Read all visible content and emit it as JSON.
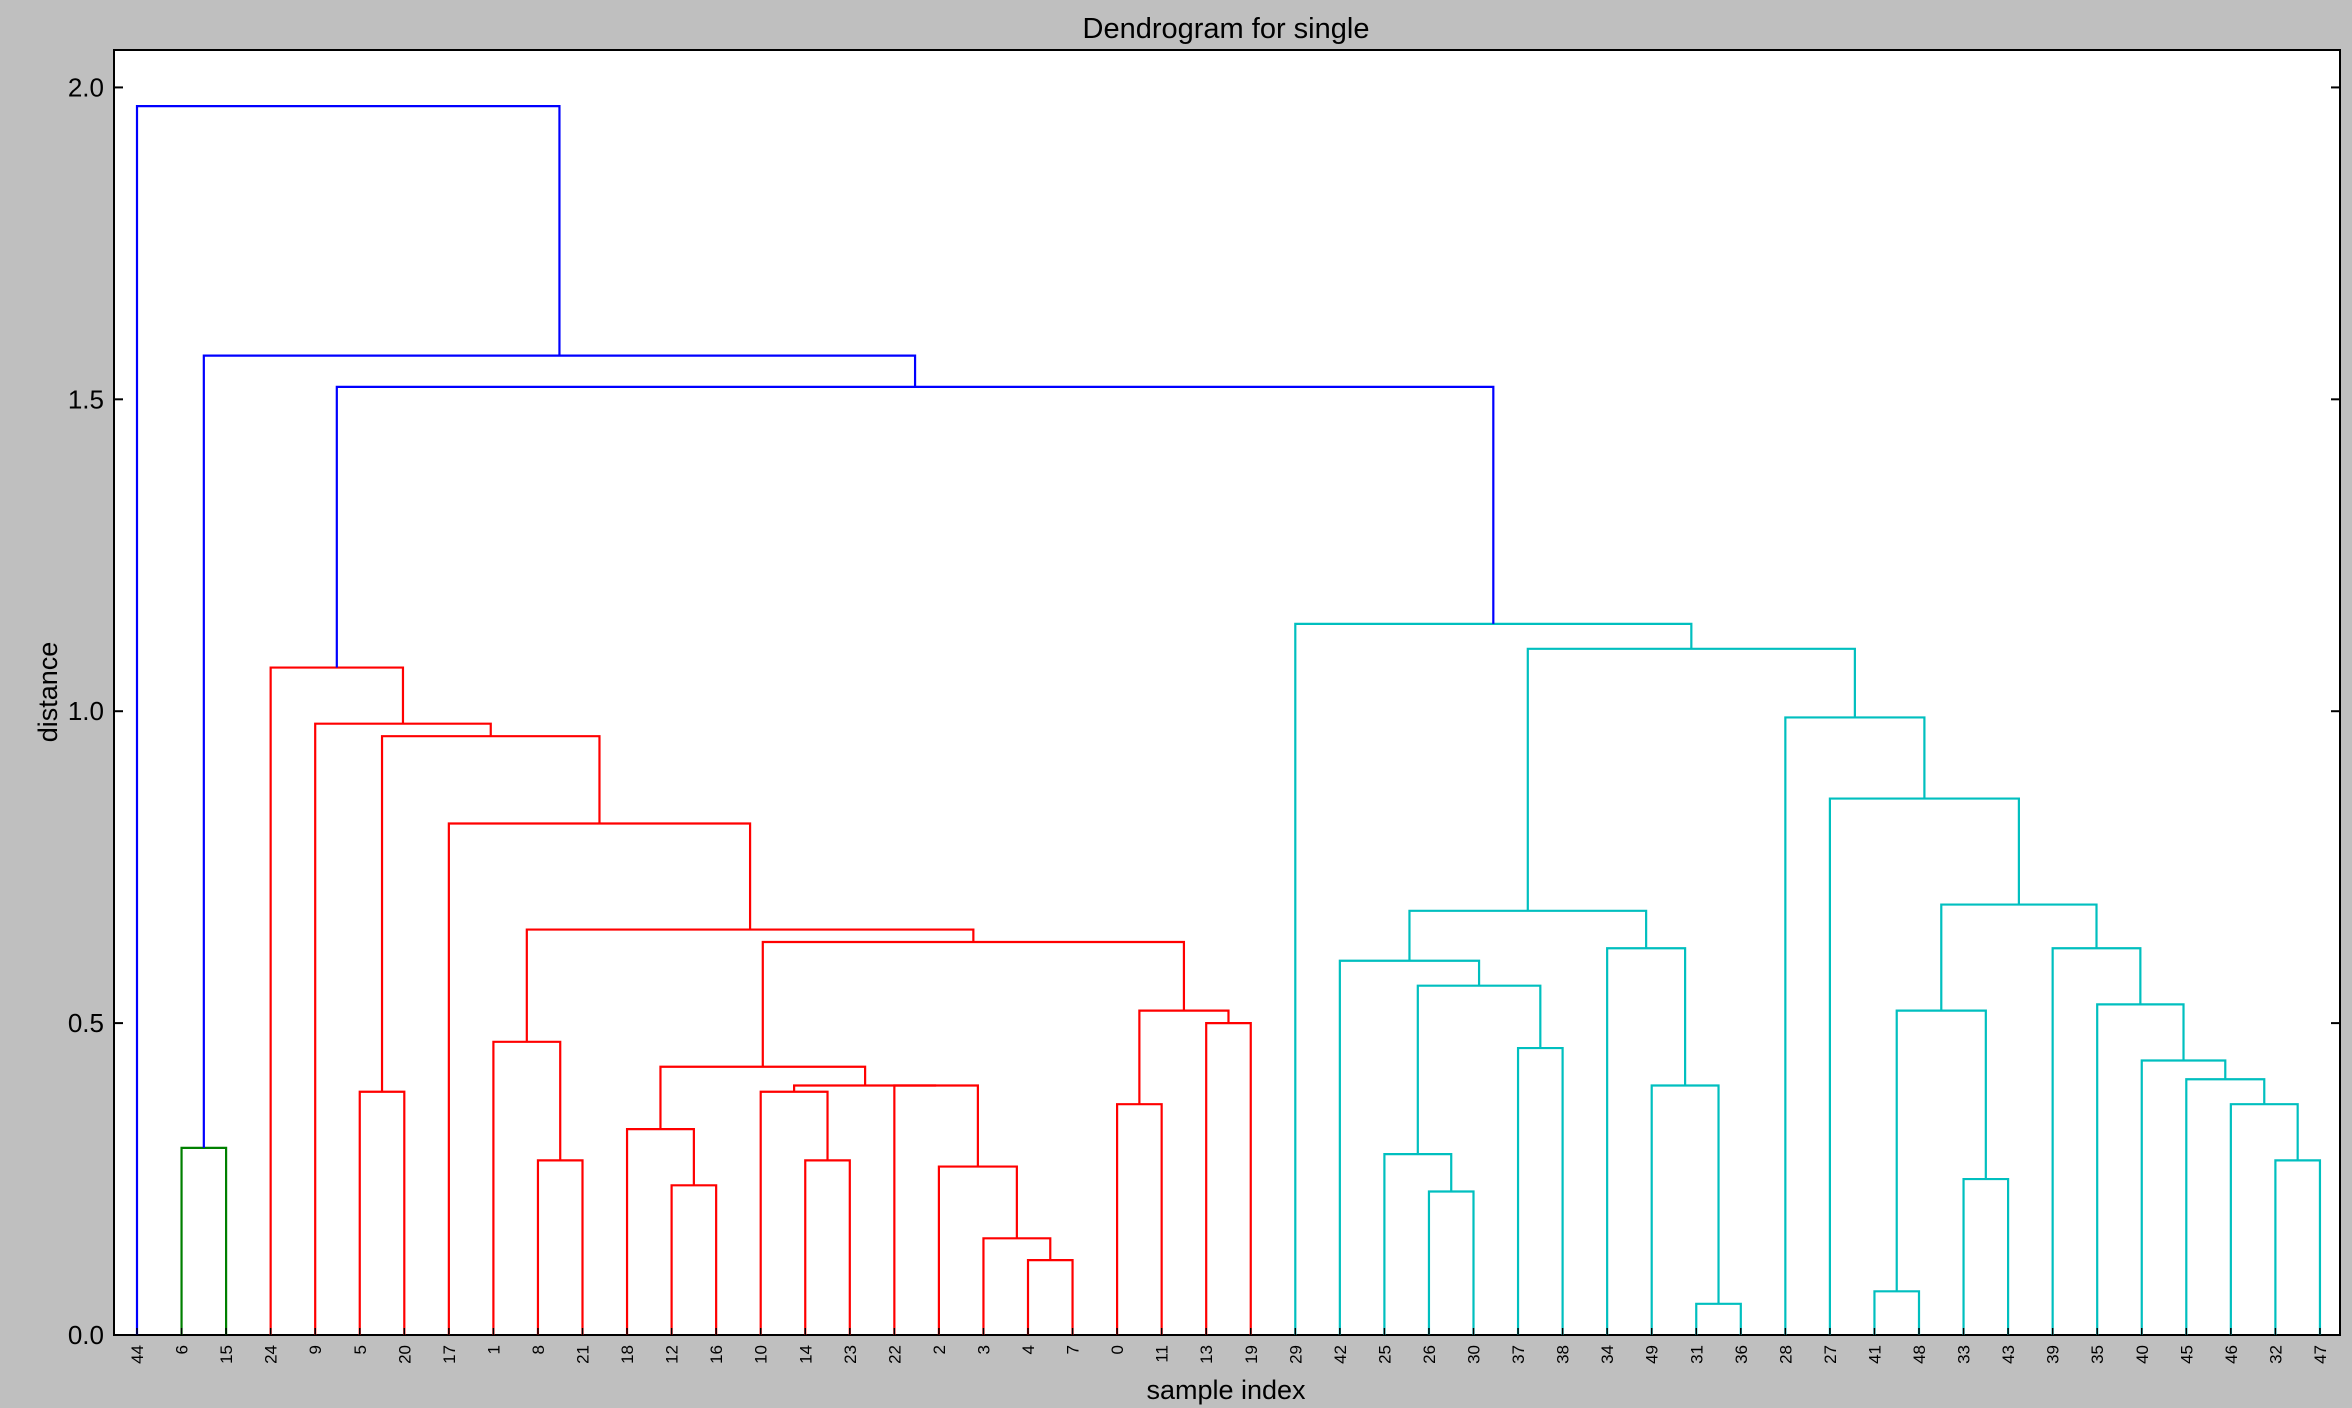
{
  "chart_data": {
    "type": "dendrogram",
    "title": "Dendrogram for single",
    "xlabel": "sample index",
    "ylabel": "distance",
    "ylim": [
      0,
      2.06
    ],
    "yticks": [
      "0.0",
      "0.5",
      "1.0",
      "1.5",
      "2.0"
    ],
    "ytick_values": [
      0,
      0.5,
      1.0,
      1.5,
      2.0
    ],
    "leaves": [
      "44",
      "6",
      "15",
      "24",
      "9",
      "5",
      "20",
      "17",
      "1",
      "8",
      "21",
      "18",
      "12",
      "16",
      "10",
      "14",
      "23",
      "22",
      "2",
      "3",
      "4",
      "7",
      "0",
      "11",
      "13",
      "19",
      "29",
      "42",
      "25",
      "26",
      "30",
      "37",
      "38",
      "34",
      "49",
      "31",
      "36",
      "28",
      "27",
      "41",
      "48",
      "33",
      "43",
      "39",
      "35",
      "40",
      "45",
      "46",
      "32",
      "47"
    ],
    "links": [
      {
        "l": 1,
        "r": 2,
        "h": 0.3,
        "c": "#008000"
      },
      {
        "l": 5,
        "r": 6,
        "h": 0.39,
        "c": "#ff0000"
      },
      {
        "l": 9,
        "r": 10,
        "h": 0.28,
        "c": "#ff0000"
      },
      {
        "l": 8,
        "r": "9-10",
        "h": 0.47,
        "c": "#ff0000"
      },
      {
        "l": 12,
        "r": 13,
        "h": 0.24,
        "c": "#ff0000"
      },
      {
        "l": 11,
        "r": "12-13",
        "h": 0.33,
        "c": "#ff0000"
      },
      {
        "l": 15,
        "r": 16,
        "h": 0.28,
        "c": "#ff0000"
      },
      {
        "l": 14,
        "r": "15-16",
        "h": 0.39,
        "c": "#ff0000"
      },
      {
        "l": 20,
        "r": 21,
        "h": 0.12,
        "c": "#ff0000"
      },
      {
        "l": 19,
        "r": "20-21",
        "h": 0.155,
        "c": "#ff0000"
      },
      {
        "l": 18,
        "r": "19-21",
        "h": 0.27,
        "c": "#ff0000"
      },
      {
        "l": 17,
        "r": "18-21",
        "h": 0.4,
        "c": "#ff0000"
      },
      {
        "l": "14-16",
        "r": "17-21",
        "h": 0.4,
        "c": "#ff0000"
      },
      {
        "l": "11-13",
        "r": "14-21",
        "h": 0.43,
        "c": "#ff0000"
      },
      {
        "l": 22,
        "r": 23,
        "h": 0.37,
        "c": "#ff0000"
      },
      {
        "l": 24,
        "r": 25,
        "h": 0.5,
        "c": "#ff0000"
      },
      {
        "l": "22-23",
        "r": "24-25",
        "h": 0.52,
        "c": "#ff0000"
      },
      {
        "l": "11-21",
        "r": "22-25",
        "h": 0.63,
        "c": "#ff0000"
      },
      {
        "l": "8-10",
        "r": "11-25",
        "h": 0.65,
        "c": "#ff0000"
      },
      {
        "l": 7,
        "r": "8-25",
        "h": 0.82,
        "c": "#ff0000"
      },
      {
        "l": "5-6",
        "r": "7-25",
        "h": 0.96,
        "c": "#ff0000"
      },
      {
        "l": 4,
        "r": "5-25",
        "h": 0.98,
        "c": "#ff0000"
      },
      {
        "l": 3,
        "r": "4-25",
        "h": 1.07,
        "c": "#ff0000"
      },
      {
        "l": 29,
        "r": 30,
        "h": 0.23,
        "c": "#00bfbf"
      },
      {
        "l": 28,
        "r": "29-30",
        "h": 0.29,
        "c": "#00bfbf"
      },
      {
        "l": 31,
        "r": 32,
        "h": 0.46,
        "c": "#00bfbf"
      },
      {
        "l": "28-30",
        "r": "31-32",
        "h": 0.56,
        "c": "#00bfbf"
      },
      {
        "l": 27,
        "r": "28-32",
        "h": 0.6,
        "c": "#00bfbf"
      },
      {
        "l": 35,
        "r": 36,
        "h": 0.05,
        "c": "#00bfbf"
      },
      {
        "l": 34,
        "r": "35-36",
        "h": 0.4,
        "c": "#00bfbf"
      },
      {
        "l": 33,
        "r": "34-36",
        "h": 0.62,
        "c": "#00bfbf"
      },
      {
        "l": "27-32",
        "r": "33-36",
        "h": 0.68,
        "c": "#00bfbf"
      },
      {
        "l": 39,
        "r": 40,
        "h": 0.07,
        "c": "#00bfbf"
      },
      {
        "l": 41,
        "r": 42,
        "h": 0.25,
        "c": "#00bfbf"
      },
      {
        "l": "39-40",
        "r": "41-42",
        "h": 0.52,
        "c": "#00bfbf"
      },
      {
        "l": 48,
        "r": 49,
        "h": 0.28,
        "c": "#00bfbf"
      },
      {
        "l": 47,
        "r": "48-49",
        "h": 0.37,
        "c": "#00bfbf"
      },
      {
        "l": 46,
        "r": "47-49",
        "h": 0.41,
        "c": "#00bfbf"
      },
      {
        "l": 45,
        "r": "46-49",
        "h": 0.44,
        "c": "#00bfbf"
      },
      {
        "l": 44,
        "r": "45-49",
        "h": 0.53,
        "c": "#00bfbf"
      },
      {
        "l": 43,
        "r": "44-49",
        "h": 0.62,
        "c": "#00bfbf"
      },
      {
        "l": "39-42",
        "r": "43-49",
        "h": 0.69,
        "c": "#00bfbf"
      },
      {
        "l": 38,
        "r": "39-49",
        "h": 0.86,
        "c": "#00bfbf"
      },
      {
        "l": 37,
        "r": "38-49",
        "h": 0.99,
        "c": "#00bfbf"
      },
      {
        "l": "27-36",
        "r": "37-49",
        "h": 1.1,
        "c": "#00bfbf"
      },
      {
        "l": 26,
        "r": "27-49",
        "h": 1.14,
        "c": "#00bfbf"
      },
      {
        "l": "3-25",
        "r": "26-49",
        "h": 1.52,
        "c": "#0000ff"
      },
      {
        "l": "1-2",
        "r": "3-49",
        "h": 1.57,
        "c": "#0000ff"
      },
      {
        "l": 0,
        "r": "1-49",
        "h": 1.97,
        "c": "#0000ff"
      }
    ]
  }
}
